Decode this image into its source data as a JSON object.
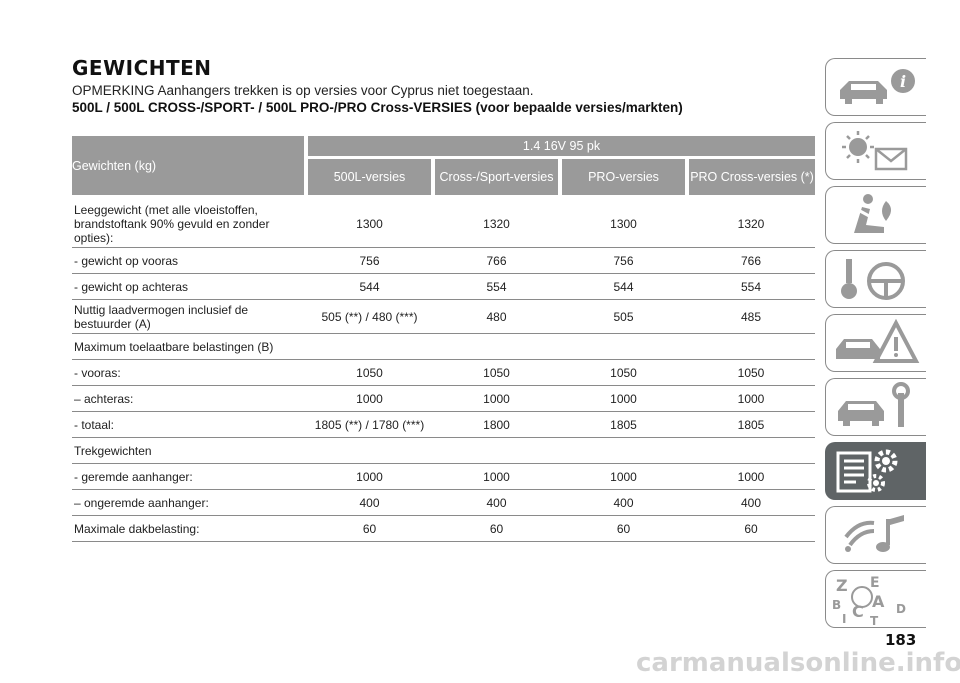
{
  "heading": "GEWICHTEN",
  "note": "OPMERKING Aanhangers trekken is op versies voor Cyprus niet toegestaan.",
  "subtitle": "500L / 500L CROSS-/SPORT- / 500L PRO-/PRO Cross-VERSIES (voor bepaalde versies/markten)",
  "table": {
    "corner_header": "Gewichten (kg)",
    "engine_header": "1.4 16V 95 pk",
    "version_headers": [
      "500L-versies",
      "Cross-/Sport-versies",
      "PRO-versies",
      "PRO Cross-versies (*)"
    ],
    "rows": [
      {
        "label": "Leeggewicht (met alle vloeistoffen, brandstoftank 90% gevuld en zonder opties):",
        "values": [
          "1300",
          "1320",
          "1300",
          "1320"
        ]
      },
      {
        "label": "- gewicht op vooras",
        "values": [
          "756",
          "766",
          "756",
          "766"
        ]
      },
      {
        "label": "- gewicht op achteras",
        "values": [
          "544",
          "554",
          "544",
          "554"
        ]
      },
      {
        "label": "Nuttig laadvermogen inclusief de bestuurder (A)",
        "values": [
          "505 (**) / 480 (***)",
          "480",
          "505",
          "485"
        ]
      },
      {
        "label": "Maximum toelaatbare belastingen (B)",
        "values": [
          "",
          "",
          "",
          ""
        ]
      },
      {
        "label": "- vooras:",
        "values": [
          "1050",
          "1050",
          "1050",
          "1050"
        ]
      },
      {
        "label": "– achteras:",
        "values": [
          "1000",
          "1000",
          "1000",
          "1000"
        ]
      },
      {
        "label": "- totaal:",
        "values": [
          "1805 (**) / 1780 (***)",
          "1800",
          "1805",
          "1805"
        ]
      },
      {
        "label": "Trekgewichten",
        "values": [
          "",
          "",
          "",
          ""
        ]
      },
      {
        "label": "- geremde aanhanger:",
        "values": [
          "1000",
          "1000",
          "1000",
          "1000"
        ]
      },
      {
        "label": "– ongeremde aanhanger:",
        "values": [
          "400",
          "400",
          "400",
          "400"
        ]
      },
      {
        "label": "Maximale dakbelasting:",
        "values": [
          "60",
          "60",
          "60",
          "60"
        ]
      }
    ]
  },
  "sidebar": {
    "active_index": 6,
    "tabs": [
      {
        "icon": "car-info-icon"
      },
      {
        "icon": "warning-lights-message-icon"
      },
      {
        "icon": "seat-airbag-icon"
      },
      {
        "icon": "key-steering-wheel-icon"
      },
      {
        "icon": "car-warning-triangle-icon"
      },
      {
        "icon": "car-wrench-icon"
      },
      {
        "icon": "specifications-gear-icon"
      },
      {
        "icon": "multimedia-music-icon"
      },
      {
        "icon": "alphabetical-index-icon",
        "letters": [
          "Z",
          "E",
          "B",
          "A",
          "C",
          "D",
          "I",
          "T"
        ]
      }
    ]
  },
  "page_number": "183",
  "watermark": "carmanualsonline.info",
  "colors": {
    "header_bg": "#9a9a9a",
    "active_tab_bg": "#5f6466",
    "icon_gray": "#9a9a9a",
    "rule": "#8a8a8a"
  }
}
